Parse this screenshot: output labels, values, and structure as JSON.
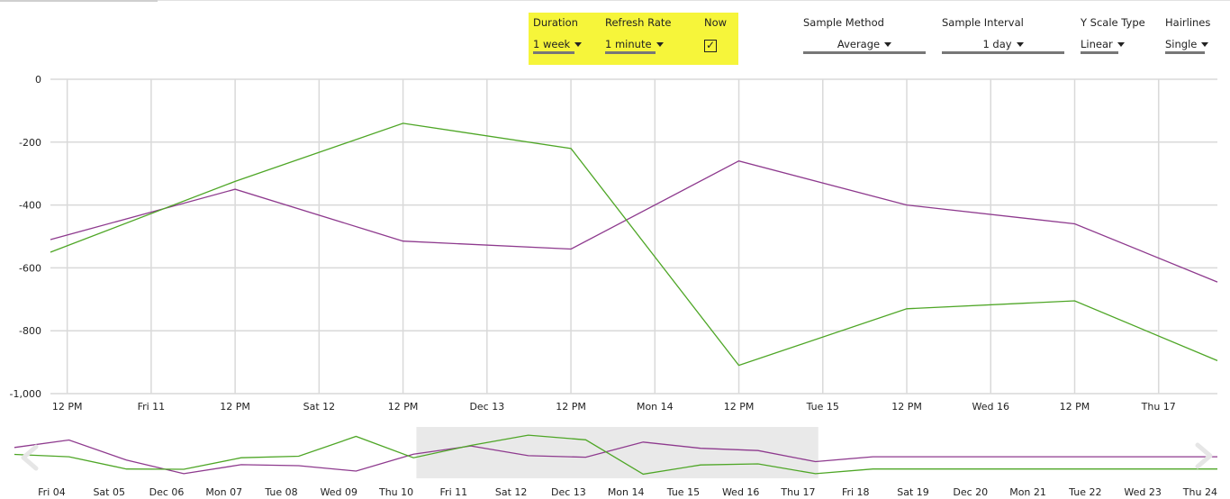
{
  "controls": {
    "duration": {
      "label": "Duration",
      "value": "1 week"
    },
    "refresh_rate": {
      "label": "Refresh Rate",
      "value": "1 minute"
    },
    "now": {
      "label": "Now",
      "checked": true
    },
    "sample_method": {
      "label": "Sample Method",
      "value": "Average"
    },
    "sample_interval": {
      "label": "Sample Interval",
      "value": "1 day"
    },
    "y_scale_type": {
      "label": "Y Scale Type",
      "value": "Linear"
    },
    "hairlines": {
      "label": "Hairlines",
      "value": "Single"
    }
  },
  "colors": {
    "highlight": "#f6f53a",
    "series_purple": "#8e3a8e",
    "series_green": "#4ea626",
    "grid": "#d9d9d9",
    "brush": "#e9e9e9"
  },
  "chart_data": [
    {
      "type": "line",
      "x_tick_labels": [
        "12 PM",
        "Fri 11",
        "12 PM",
        "Sat 12",
        "12 PM",
        "Dec 13",
        "12 PM",
        "Mon 14",
        "12 PM",
        "Tue 15",
        "12 PM",
        "Wed 16",
        "12 PM",
        "Thu 17"
      ],
      "x_ticks": [
        0.5,
        1,
        1.5,
        2,
        2.5,
        3,
        3.5,
        4,
        4.5,
        5,
        5.5,
        6,
        6.5,
        7
      ],
      "xlim": [
        0.4,
        7.35
      ],
      "y_tick_labels": [
        "0",
        "-200",
        "-400",
        "-600",
        "-800",
        "-1,000"
      ],
      "y_ticks": [
        0,
        -200,
        -400,
        -600,
        -800,
        -1000
      ],
      "ylim": [
        -1000,
        0
      ],
      "grid": true,
      "series": [
        {
          "color": "#8e3a8e",
          "x": [
            0.4,
            1.5,
            2.5,
            3.5,
            4.5,
            5.5,
            6.5,
            7.35
          ],
          "values": [
            -510,
            -350,
            -515,
            -540,
            -260,
            -400,
            -460,
            -645
          ]
        },
        {
          "color": "#4ea626",
          "x": [
            0.4,
            1.5,
            2.5,
            3.5,
            4.5,
            5.5,
            6.5,
            7.35
          ],
          "values": [
            -550,
            -325,
            -140,
            -220,
            -910,
            -730,
            -705,
            -895
          ]
        }
      ]
    },
    {
      "type": "line",
      "x_tick_labels": [
        "Fri 04",
        "Sat 05",
        "Dec 06",
        "Mon 07",
        "Tue 08",
        "Wed 09",
        "Thu 10",
        "Fri 11",
        "Sat 12",
        "Dec 13",
        "Mon 14",
        "Tue 15",
        "Wed 16",
        "Thu 17",
        "Fri 18",
        "Sat 19",
        "Dec 20",
        "Mon 21",
        "Tue 22",
        "Wed 23",
        "Thu 24"
      ],
      "x_ticks": [
        0,
        1,
        2,
        3,
        4,
        5,
        6,
        7,
        8,
        9,
        10,
        11,
        12,
        13,
        14,
        15,
        16,
        17,
        18,
        19,
        20
      ],
      "xlim": [
        -0.65,
        20.3
      ],
      "selected_range": [
        6.35,
        13.35
      ],
      "ylim": [
        -1000,
        0
      ],
      "series": [
        {
          "color": "#8e3a8e",
          "x": [
            -0.65,
            0.3,
            1.3,
            2.3,
            3.3,
            4.3,
            5.3,
            6.3,
            7.3,
            8.3,
            9.3,
            10.3,
            11.3,
            12.3,
            13.3,
            14.3,
            15.3,
            16.3,
            17.3,
            18.3,
            19.3,
            20.3
          ],
          "values": [
            -400,
            -255,
            -645,
            -910,
            -735,
            -755,
            -860,
            -530,
            -370,
            -560,
            -590,
            -295,
            -415,
            -460,
            -675,
            -580,
            -580,
            -580,
            -580,
            -580,
            -580,
            -580
          ]
        },
        {
          "color": "#4ea626",
          "x": [
            -0.65,
            0.3,
            1.3,
            2.3,
            3.3,
            4.3,
            5.3,
            6.3,
            7.3,
            8.3,
            9.3,
            10.3,
            11.3,
            12.3,
            13.3,
            14.3,
            15.3,
            16.3,
            17.3,
            18.3,
            19.3,
            20.3
          ],
          "values": [
            -535,
            -580,
            -820,
            -825,
            -600,
            -570,
            -185,
            -600,
            -360,
            -160,
            -250,
            -920,
            -740,
            -720,
            -910,
            -820,
            -820,
            -820,
            -820,
            -820,
            -820,
            -820
          ]
        }
      ]
    }
  ]
}
